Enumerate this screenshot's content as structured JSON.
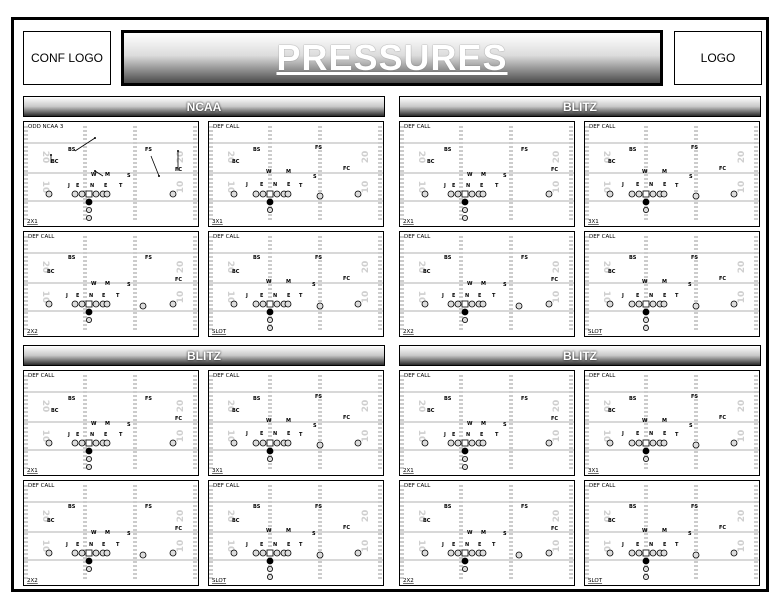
{
  "header": {
    "left_logo": "CONF LOGO",
    "title": "PRESSURES",
    "right_logo": "LOGO"
  },
  "sections": [
    {
      "title": "NCAA",
      "diagrams": [
        {
          "call": "ODD NCAA 3",
          "formation": "2X1"
        },
        {
          "call": "DEF CALL",
          "formation": "3X1"
        },
        {
          "call": "DEF CALL",
          "formation": "2X2"
        },
        {
          "call": "DEF CALL",
          "formation": "SLOT"
        }
      ]
    },
    {
      "title": "BLITZ",
      "diagrams": [
        {
          "call": "DEF CALL",
          "formation": "2X1"
        },
        {
          "call": "DEF CALL",
          "formation": "3X1"
        },
        {
          "call": "DEF CALL",
          "formation": "2X2"
        },
        {
          "call": "DEF CALL",
          "formation": "SLOT"
        }
      ]
    },
    {
      "title": "BLITZ",
      "diagrams": [
        {
          "call": "DEF CALL",
          "formation": "2X1"
        },
        {
          "call": "DEF CALL",
          "formation": "3X1"
        },
        {
          "call": "DEF CALL",
          "formation": "2X2"
        },
        {
          "call": "DEF CALL",
          "formation": "SLOT"
        }
      ]
    },
    {
      "title": "BLITZ",
      "diagrams": [
        {
          "call": "DEF CALL",
          "formation": "2X1"
        },
        {
          "call": "DEF CALL",
          "formation": "3X1"
        },
        {
          "call": "DEF CALL",
          "formation": "2X2"
        },
        {
          "call": "DEF CALL",
          "formation": "SLOT"
        }
      ]
    }
  ],
  "field": {
    "yard_numbers": [
      "20",
      "10"
    ],
    "defense_labels": {
      "bs": "BS",
      "fs": "FS",
      "bc": "BC",
      "fc": "FC",
      "w": "W",
      "m": "M",
      "s": "S",
      "j": "J",
      "e": "E",
      "n": "N",
      "t": "T"
    }
  }
}
